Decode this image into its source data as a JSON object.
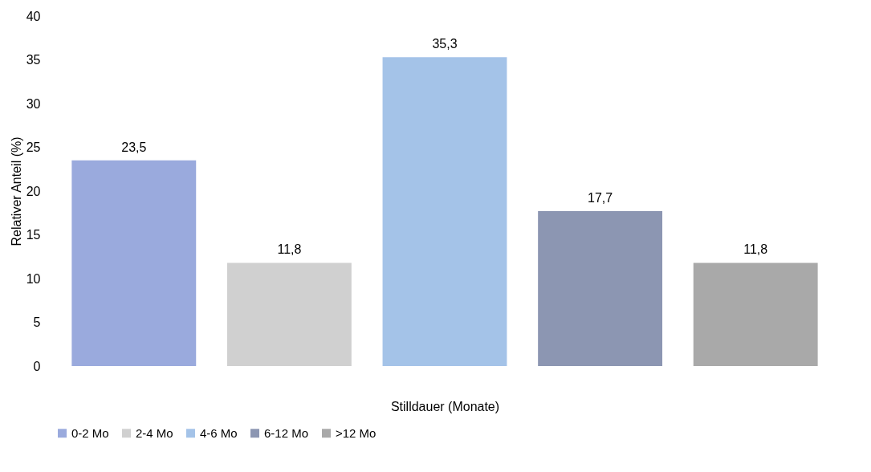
{
  "chart_data": {
    "type": "bar",
    "stacked": true,
    "xlabel": "Stilldauer (Monate)",
    "ylabel": "Relativer Anteil (%)",
    "categories": [
      null,
      null,
      null,
      null,
      null
    ],
    "series": [
      {
        "name": "0-2 Mo",
        "color": "#9aaadd",
        "values": [
          23.5,
          null,
          null,
          null,
          null
        ],
        "value_labels": [
          "23,5",
          null,
          null,
          null,
          null
        ]
      },
      {
        "name": "2-4 Mo",
        "color": "#d0d0d0",
        "values": [
          null,
          11.8,
          null,
          null,
          null
        ],
        "value_labels": [
          null,
          "11,8",
          null,
          null,
          null
        ]
      },
      {
        "name": "4-6 Mo",
        "color": "#a4c3e8",
        "values": [
          null,
          null,
          35.3,
          null,
          null
        ],
        "value_labels": [
          null,
          null,
          "35,3",
          null,
          null
        ]
      },
      {
        "name": "6-12 Mo",
        "color": "#8c96b2",
        "values": [
          null,
          null,
          null,
          17.7,
          null
        ],
        "value_labels": [
          null,
          null,
          null,
          "17,7",
          null
        ]
      },
      {
        "name": ">12 Mo",
        "color": "#a9a9a9",
        "values": [
          null,
          null,
          null,
          null,
          11.8
        ],
        "value_labels": [
          null,
          null,
          null,
          null,
          "11,8"
        ]
      }
    ],
    "ylim": [
      0,
      40
    ],
    "yticks": [
      0,
      5,
      10,
      15,
      20,
      25,
      30,
      35,
      40
    ],
    "grid": false,
    "legend": "bottom"
  }
}
